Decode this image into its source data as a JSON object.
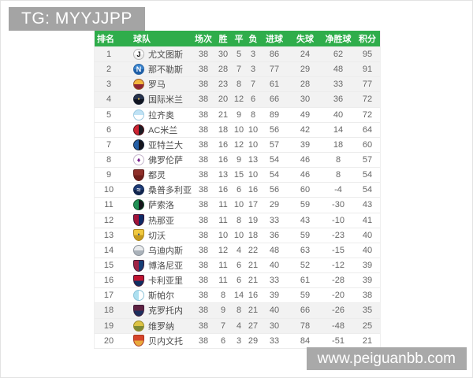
{
  "top_badge": {
    "text": "TG: MYYJJPP",
    "bg": "#a4a4a4",
    "color": "#ffffff"
  },
  "watermark": {
    "text": "www.peiguanbb.com",
    "bg": "#a9a9a9",
    "color": "#ffffff"
  },
  "colors": {
    "header_green": "#2fad4b",
    "row_highlight": "#f2f2f2",
    "text_gray": "#666666"
  },
  "table": {
    "headers": [
      {
        "key": "rank",
        "label": "排名"
      },
      {
        "key": "team",
        "label": "球队"
      },
      {
        "key": "played",
        "label": "场次"
      },
      {
        "key": "win",
        "label": "胜"
      },
      {
        "key": "draw",
        "label": "平"
      },
      {
        "key": "loss",
        "label": "负"
      },
      {
        "key": "goals-for",
        "label": "进球"
      },
      {
        "key": "goals-against",
        "label": "失球"
      },
      {
        "key": "goal-diff",
        "label": "净胜球"
      },
      {
        "key": "points",
        "label": "积分"
      }
    ],
    "rows": [
      {
        "rank": 1,
        "team": "尤文图斯",
        "played": 38,
        "win": 30,
        "draw": 5,
        "loss": 3,
        "gf": 86,
        "ga": 24,
        "gd": 62,
        "pts": 95,
        "highlight": true,
        "icon": {
          "name": "juventus-crest-icon",
          "shape": "circle",
          "dir": "v",
          "c1": "#ffffff",
          "c2": "#f0f0f0",
          "glyph": "J",
          "gcolor": "#141414",
          "border": "#b5b5b5"
        }
      },
      {
        "rank": 2,
        "team": "那不勒斯",
        "played": 38,
        "win": 28,
        "draw": 7,
        "loss": 3,
        "gf": 77,
        "ga": 29,
        "gd": 48,
        "pts": 91,
        "highlight": true,
        "icon": {
          "name": "napoli-crest-icon",
          "shape": "circle",
          "dir": "v",
          "c1": "#3c86cf",
          "c2": "#1f5fa8",
          "glyph": "N",
          "gcolor": "#ffffff",
          "border": "#2a65a5"
        }
      },
      {
        "rank": 3,
        "team": "罗马",
        "played": 38,
        "win": 23,
        "draw": 8,
        "loss": 7,
        "gf": 61,
        "ga": 28,
        "gd": 33,
        "pts": 77,
        "highlight": true,
        "icon": {
          "name": "roma-crest-icon",
          "shape": "circle",
          "dir": "v",
          "c1": "#f2b63c",
          "c2": "#8e2434",
          "glyph": "",
          "gcolor": "#ffffff",
          "border": "#9c5a28"
        }
      },
      {
        "rank": 4,
        "team": "国际米兰",
        "played": 38,
        "win": 20,
        "draw": 12,
        "loss": 6,
        "gf": 66,
        "ga": 30,
        "gd": 36,
        "pts": 72,
        "highlight": true,
        "icon": {
          "name": "inter-crest-icon",
          "shape": "circle",
          "dir": "v",
          "c1": "#27344f",
          "c2": "#0f1420",
          "glyph": "●",
          "gcolor": "#d9b64a",
          "border": "#1a2233"
        }
      },
      {
        "rank": 5,
        "team": "拉齐奥",
        "played": 38,
        "win": 21,
        "draw": 9,
        "loss": 8,
        "gf": 89,
        "ga": 49,
        "gd": 40,
        "pts": 72,
        "highlight": false,
        "icon": {
          "name": "lazio-crest-icon",
          "shape": "circle",
          "dir": "v",
          "c1": "#bfe2f5",
          "c2": "#ffffff",
          "glyph": "",
          "gcolor": "#ffffff",
          "border": "#9cc9e0"
        }
      },
      {
        "rank": 6,
        "team": "AC米兰",
        "played": 38,
        "win": 18,
        "draw": 10,
        "loss": 10,
        "gf": 56,
        "ga": 42,
        "gd": 14,
        "pts": 64,
        "highlight": false,
        "icon": {
          "name": "ac-milan-crest-icon",
          "shape": "circle",
          "dir": "h",
          "c1": "#cf2231",
          "c2": "#1c1c24",
          "glyph": "",
          "gcolor": "#ffffff",
          "border": "#57121a"
        }
      },
      {
        "rank": 7,
        "team": "亚特兰大",
        "played": 38,
        "win": 16,
        "draw": 12,
        "loss": 10,
        "gf": 57,
        "ga": 39,
        "gd": 18,
        "pts": 60,
        "highlight": false,
        "icon": {
          "name": "atalanta-crest-icon",
          "shape": "circle",
          "dir": "h",
          "c1": "#2560a8",
          "c2": "#14141c",
          "glyph": "",
          "gcolor": "#ffffff",
          "border": "#16263d"
        }
      },
      {
        "rank": 8,
        "team": "佛罗伦萨",
        "played": 38,
        "win": 16,
        "draw": 9,
        "loss": 13,
        "gf": 54,
        "ga": 46,
        "gd": 8,
        "pts": 57,
        "highlight": false,
        "icon": {
          "name": "fiorentina-crest-icon",
          "shape": "circle",
          "dir": "v",
          "c1": "#ffffff",
          "c2": "#ffffff",
          "glyph": "♦",
          "gcolor": "#7a1f8e",
          "border": "#c5b6cc"
        }
      },
      {
        "rank": 9,
        "team": "都灵",
        "played": 38,
        "win": 13,
        "draw": 15,
        "loss": 10,
        "gf": 54,
        "ga": 46,
        "gd": 8,
        "pts": 54,
        "highlight": false,
        "icon": {
          "name": "torino-crest-icon",
          "shape": "shield",
          "dir": "v",
          "c1": "#8f2f2a",
          "c2": "#701f1c",
          "glyph": "",
          "gcolor": "#ffffff",
          "border": "#5c1816"
        }
      },
      {
        "rank": 10,
        "team": "桑普多利亚",
        "played": 38,
        "win": 16,
        "draw": 6,
        "loss": 16,
        "gf": 56,
        "ga": 60,
        "gd": -4,
        "pts": 54,
        "highlight": false,
        "icon": {
          "name": "sampdoria-crest-icon",
          "shape": "circle",
          "dir": "v",
          "c1": "#1d3c78",
          "c2": "#10244e",
          "glyph": "≈",
          "gcolor": "#ffffff",
          "border": "#12264d"
        }
      },
      {
        "rank": 11,
        "team": "萨索洛",
        "played": 38,
        "win": 11,
        "draw": 10,
        "loss": 17,
        "gf": 29,
        "ga": 59,
        "gd": -30,
        "pts": 43,
        "highlight": false,
        "icon": {
          "name": "sassuolo-crest-icon",
          "shape": "circle",
          "dir": "h",
          "c1": "#209155",
          "c2": "#15161b",
          "glyph": "",
          "gcolor": "#ffffff",
          "border": "#14532e"
        }
      },
      {
        "rank": 12,
        "team": "热那亚",
        "played": 38,
        "win": 11,
        "draw": 8,
        "loss": 19,
        "gf": 33,
        "ga": 43,
        "gd": -10,
        "pts": 41,
        "highlight": false,
        "icon": {
          "name": "genoa-crest-icon",
          "shape": "shield",
          "dir": "h",
          "c1": "#a31238",
          "c2": "#0e2a66",
          "glyph": "",
          "gcolor": "#ffffff",
          "border": "#3a1030"
        }
      },
      {
        "rank": 13,
        "team": "切沃",
        "played": 38,
        "win": 10,
        "draw": 10,
        "loss": 18,
        "gf": 36,
        "ga": 59,
        "gd": -23,
        "pts": 40,
        "highlight": false,
        "icon": {
          "name": "chievo-crest-icon",
          "shape": "shield",
          "dir": "v",
          "c1": "#f0c93f",
          "c2": "#c59a1d",
          "glyph": "●",
          "gcolor": "#274f8e",
          "border": "#a8831a"
        }
      },
      {
        "rank": 14,
        "team": "乌迪内斯",
        "played": 38,
        "win": 12,
        "draw": 4,
        "loss": 22,
        "gf": 48,
        "ga": 63,
        "gd": -15,
        "pts": 40,
        "highlight": false,
        "icon": {
          "name": "udinese-crest-icon",
          "shape": "circle",
          "dir": "v",
          "c1": "#e8eaec",
          "c2": "#aab2ba",
          "glyph": "",
          "gcolor": "#ffffff",
          "border": "#8d949c"
        }
      },
      {
        "rank": 15,
        "team": "博洛尼亚",
        "played": 38,
        "win": 11,
        "draw": 6,
        "loss": 21,
        "gf": 40,
        "ga": 52,
        "gd": -12,
        "pts": 39,
        "highlight": false,
        "icon": {
          "name": "bologna-crest-icon",
          "shape": "shield",
          "dir": "h",
          "c1": "#a02445",
          "c2": "#173e75",
          "glyph": "",
          "gcolor": "#ffffff",
          "border": "#401a34"
        }
      },
      {
        "rank": 16,
        "team": "卡利亚里",
        "played": 38,
        "win": 11,
        "draw": 6,
        "loss": 21,
        "gf": 33,
        "ga": 61,
        "gd": -28,
        "pts": 39,
        "highlight": false,
        "icon": {
          "name": "cagliari-crest-icon",
          "shape": "shield",
          "dir": "v",
          "c1": "#c01430",
          "c2": "#0f2f63",
          "glyph": "",
          "gcolor": "#ffffff",
          "border": "#44122e"
        }
      },
      {
        "rank": 17,
        "team": "斯帕尔",
        "played": 38,
        "win": 8,
        "draw": 14,
        "loss": 16,
        "gf": 39,
        "ga": 59,
        "gd": -20,
        "pts": 38,
        "highlight": false,
        "icon": {
          "name": "spal-crest-icon",
          "shape": "circle",
          "dir": "h",
          "c1": "#ade0f0",
          "c2": "#ffffff",
          "glyph": "",
          "gcolor": "#ffffff",
          "border": "#8cc3d8"
        }
      },
      {
        "rank": 18,
        "team": "克罗托内",
        "played": 38,
        "win": 9,
        "draw": 8,
        "loss": 21,
        "gf": 40,
        "ga": 66,
        "gd": -26,
        "pts": 35,
        "highlight": true,
        "icon": {
          "name": "crotone-crest-icon",
          "shape": "shield",
          "dir": "v",
          "c1": "#5e2242",
          "c2": "#1d2f5e",
          "glyph": "",
          "gcolor": "#ffffff",
          "border": "#3c1a38"
        }
      },
      {
        "rank": 19,
        "team": "维罗纳",
        "played": 38,
        "win": 7,
        "draw": 4,
        "loss": 27,
        "gf": 30,
        "ga": 78,
        "gd": -48,
        "pts": 25,
        "highlight": true,
        "icon": {
          "name": "verona-crest-icon",
          "shape": "circle",
          "dir": "v",
          "c1": "#ddc344",
          "c2": "#7e8a35",
          "glyph": "",
          "gcolor": "#ffffff",
          "border": "#9a8c2e"
        }
      },
      {
        "rank": 20,
        "team": "贝内文托",
        "played": 38,
        "win": 6,
        "draw": 3,
        "loss": 29,
        "gf": 33,
        "ga": 84,
        "gd": -51,
        "pts": 21,
        "highlight": false,
        "icon": {
          "name": "benevento-crest-icon",
          "shape": "shield",
          "dir": "v",
          "c1": "#d6452b",
          "c2": "#e8a93c",
          "glyph": "",
          "gcolor": "#ffffff",
          "border": "#a8321f"
        }
      }
    ]
  }
}
